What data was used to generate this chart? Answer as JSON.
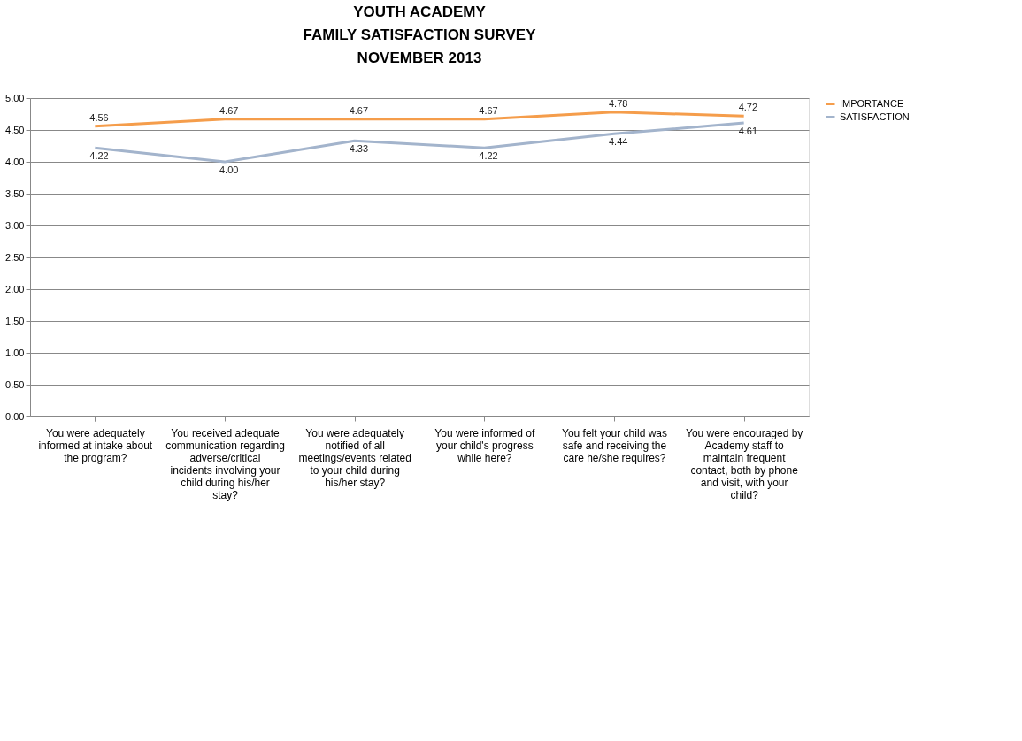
{
  "chart_data": {
    "type": "line",
    "title": "YOUTH ACADEMY\nFAMILY SATISFACTION SURVEY\nNOVEMBER 2013",
    "categories": [
      "You were adequately informed at intake about the program?",
      "You received adequate communication regarding adverse/critical incidents involving your child during his/her stay?",
      "You were adequately notified of all meetings/events related to your child during his/her stay?",
      "You were informed of your child's progress while here?",
      "You felt your child was safe and receiving the care he/she requires?",
      "You were encouraged by Academy staff to maintain frequent contact, both by phone and visit, with your child?"
    ],
    "series": [
      {
        "name": "IMPORTANCE",
        "color": "#f59d4b",
        "values": [
          4.56,
          4.67,
          4.67,
          4.67,
          4.78,
          4.72
        ],
        "value_labels": [
          "4.56",
          "4.67",
          "4.67",
          "4.67",
          "4.78",
          "4.72"
        ]
      },
      {
        "name": "SATISFACTION",
        "color": "#a3b4cc",
        "values": [
          4.22,
          4.0,
          4.33,
          4.22,
          4.44,
          4.61
        ],
        "value_labels": [
          "4.22",
          "4.00",
          "4.33",
          "4.22",
          "4.44",
          "4.61"
        ]
      }
    ],
    "ylim": [
      0,
      5
    ],
    "yticks": [
      {
        "value": 0,
        "label": "0.00"
      },
      {
        "value": 0.5,
        "label": "0.50"
      },
      {
        "value": 1,
        "label": "1.00"
      },
      {
        "value": 1.5,
        "label": "1.50"
      },
      {
        "value": 2,
        "label": "2.00"
      },
      {
        "value": 2.5,
        "label": "2.50"
      },
      {
        "value": 3,
        "label": "3.00"
      },
      {
        "value": 3.5,
        "label": "3.50"
      },
      {
        "value": 4,
        "label": "4.00"
      },
      {
        "value": 4.5,
        "label": "4.50"
      },
      {
        "value": 5,
        "label": "5.00"
      }
    ],
    "grid": "y",
    "legend": "right",
    "marker": "none",
    "line_style": "solid"
  }
}
